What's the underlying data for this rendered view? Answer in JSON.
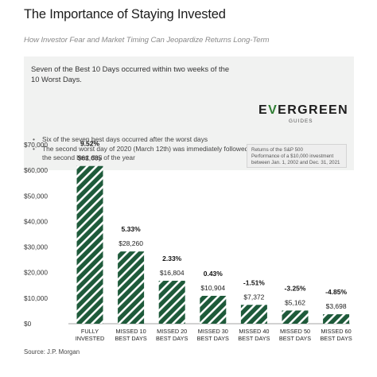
{
  "header": {
    "title": "The Importance of Staying Invested",
    "subtitle": "How Investor Fear and Market Timing Can Jeopardize Returns Long-Term"
  },
  "callout": {
    "headline": "Seven of the Best 10 Days occurred within two weeks of the 10 Worst Days.",
    "bullets": [
      "Six of the seven best days occurred after the worst days",
      "The second worst day of 2020 (March 12th) was immediately followed by the second best day of the year"
    ]
  },
  "logo": {
    "word_start": "E",
    "word_v": "V",
    "word_end": "ERGREEN",
    "sub": "GUIDES"
  },
  "note": {
    "lines": [
      "Returns of the S&P 500",
      "Performance of a $10,000 investment",
      "between Jan. 1, 2002 and Dec. 31, 2021"
    ]
  },
  "source": "Source: J.P. Morgan",
  "colors": {
    "bar_dark": "#1e5a3a",
    "bar_stripe": "#ffffff",
    "negative_label": "#111111"
  },
  "chart_data": {
    "type": "bar",
    "categories": [
      [
        "FULLY",
        "INVESTED"
      ],
      [
        "MISSED 10",
        "BEST DAYS"
      ],
      [
        "MISSED 20",
        "BEST DAYS"
      ],
      [
        "MISSED 30",
        "BEST DAYS"
      ],
      [
        "MISSED 40",
        "BEST DAYS"
      ],
      [
        "MISSED 50",
        "BEST DAYS"
      ],
      [
        "MISSED 60",
        "BEST DAYS"
      ]
    ],
    "values": [
      61685,
      28260,
      16804,
      10904,
      7372,
      5162,
      3698
    ],
    "value_labels": [
      "$61,685",
      "$28,260",
      "$16,804",
      "$10,904",
      "$7,372",
      "$5,162",
      "$3,698"
    ],
    "percent_labels": [
      "9.52%",
      "5.33%",
      "2.33%",
      "0.43%",
      "-1.51%",
      "-3.25%",
      "-4.85%"
    ],
    "ylim": [
      0,
      70000
    ],
    "yticks": [
      0,
      10000,
      20000,
      30000,
      40000,
      50000,
      60000,
      70000
    ],
    "ytick_labels": [
      "$0",
      "$10,000",
      "$20,000",
      "$30,000",
      "$40,000",
      "$50,000",
      "$60,000",
      "$70,000"
    ],
    "grid": false
  }
}
